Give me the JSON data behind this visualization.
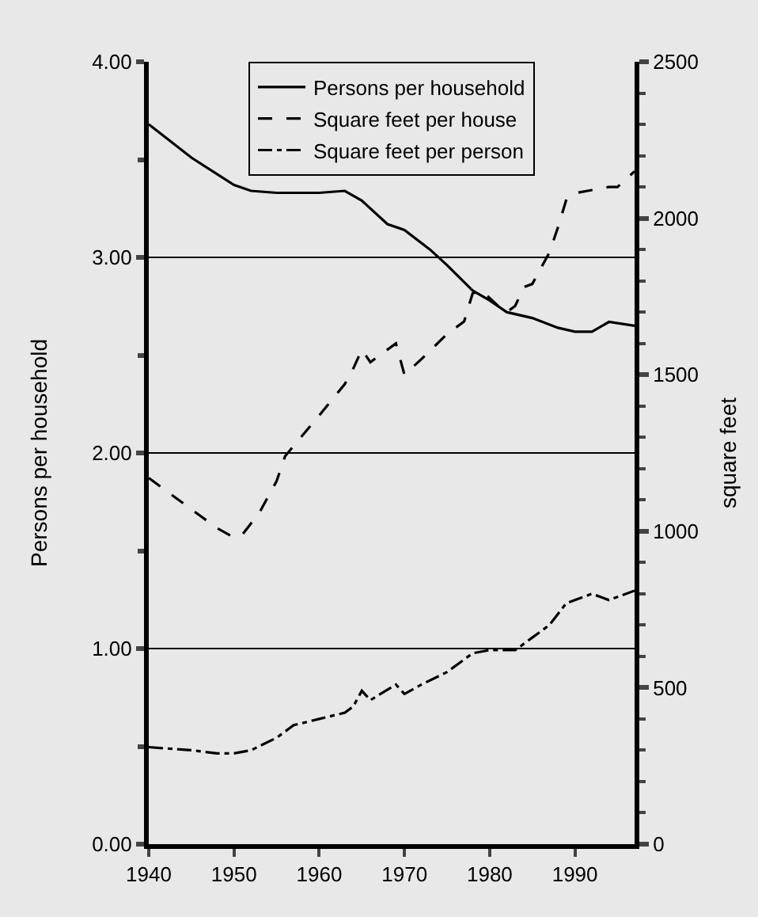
{
  "chart_data": {
    "type": "line",
    "ylabel": "Persons per household",
    "y2label": "square feet",
    "xlim": [
      1940,
      1997
    ],
    "xticks": [
      1940,
      1950,
      1960,
      1970,
      1980,
      1990
    ],
    "ylim": [
      0,
      4
    ],
    "yticks": [
      {
        "value": 0,
        "label": "0.00"
      },
      {
        "value": 0.5,
        "label": null
      },
      {
        "value": 1,
        "label": "1.00"
      },
      {
        "value": 1.5,
        "label": null
      },
      {
        "value": 2,
        "label": "2.00"
      },
      {
        "value": 2.5,
        "label": null
      },
      {
        "value": 3,
        "label": "3.00"
      },
      {
        "value": 3.5,
        "label": null
      },
      {
        "value": 4,
        "label": "4.00"
      }
    ],
    "y2lim": [
      0,
      2500
    ],
    "y2ticks": [
      0,
      {
        "value": 100,
        "label": null
      },
      {
        "value": 200,
        "label": null
      },
      {
        "value": 300,
        "label": null
      },
      {
        "value": 400,
        "label": null
      },
      500,
      {
        "value": 600,
        "label": null
      },
      {
        "value": 700,
        "label": null
      },
      {
        "value": 800,
        "label": null
      },
      {
        "value": 900,
        "label": null
      },
      1000,
      {
        "value": 1100,
        "label": null
      },
      {
        "value": 1200,
        "label": null
      },
      {
        "value": 1300,
        "label": null
      },
      {
        "value": 1400,
        "label": null
      },
      1500,
      {
        "value": 1600,
        "label": null
      },
      {
        "value": 1700,
        "label": null
      },
      {
        "value": 1800,
        "label": null
      },
      {
        "value": 1900,
        "label": null
      },
      2000,
      {
        "value": 2100,
        "label": null
      },
      {
        "value": 2200,
        "label": null
      },
      {
        "value": 2300,
        "label": null
      },
      {
        "value": 2400,
        "label": null
      },
      2500
    ],
    "grid": "y",
    "legend": "top",
    "marker": "none",
    "series": [
      {
        "name": "Persons per household",
        "color": "#000000",
        "line_style": "solid",
        "x": [
          1940,
          1945,
          1950,
          1952,
          1955,
          1960,
          1963,
          1965,
          1968,
          1970,
          1973,
          1975,
          1978,
          1980,
          1982,
          1985,
          1988,
          1990,
          1992,
          1994,
          1997
        ],
        "values": [
          3.68,
          3.51,
          3.37,
          3.34,
          3.33,
          3.33,
          3.34,
          3.29,
          3.17,
          3.14,
          3.04,
          2.96,
          2.83,
          2.78,
          2.72,
          2.69,
          2.64,
          2.62,
          2.62,
          2.67,
          2.65
        ]
      },
      {
        "name": "Square feet per house",
        "color": "#000000",
        "line_style": "dashed",
        "axis": "y2",
        "x": [
          1940,
          1945,
          1948,
          1950,
          1951,
          1953,
          1955,
          1956,
          1960,
          1963,
          1964,
          1965,
          1966,
          1967,
          1969,
          1970,
          1972,
          1975,
          1977,
          1978,
          1979,
          1981,
          1982,
          1983,
          1984,
          1985,
          1986,
          1987,
          1988,
          1989,
          1990,
          1992,
          1994,
          1995,
          1997
        ],
        "values": [
          1170,
          1070,
          1010,
          980,
          990,
          1060,
          1160,
          1240,
          1370,
          1470,
          1520,
          1580,
          1540,
          1560,
          1600,
          1500,
          1550,
          1630,
          1670,
          1760,
          1770,
          1720,
          1700,
          1720,
          1780,
          1790,
          1840,
          1890,
          1970,
          2060,
          2080,
          2090,
          2100,
          2100,
          2150
        ]
      },
      {
        "name": "Square feet per person",
        "color": "#000000",
        "line_style": "dashdot",
        "axis": "y2",
        "x": [
          1940,
          1945,
          1948,
          1950,
          1952,
          1955,
          1957,
          1960,
          1963,
          1964,
          1965,
          1966,
          1969,
          1970,
          1972,
          1975,
          1978,
          1980,
          1983,
          1985,
          1987,
          1989,
          1990,
          1992,
          1994,
          1997
        ],
        "values": [
          310,
          300,
          290,
          290,
          300,
          340,
          380,
          400,
          420,
          440,
          490,
          460,
          510,
          480,
          510,
          550,
          610,
          620,
          620,
          660,
          700,
          770,
          780,
          800,
          780,
          810
        ]
      }
    ]
  }
}
